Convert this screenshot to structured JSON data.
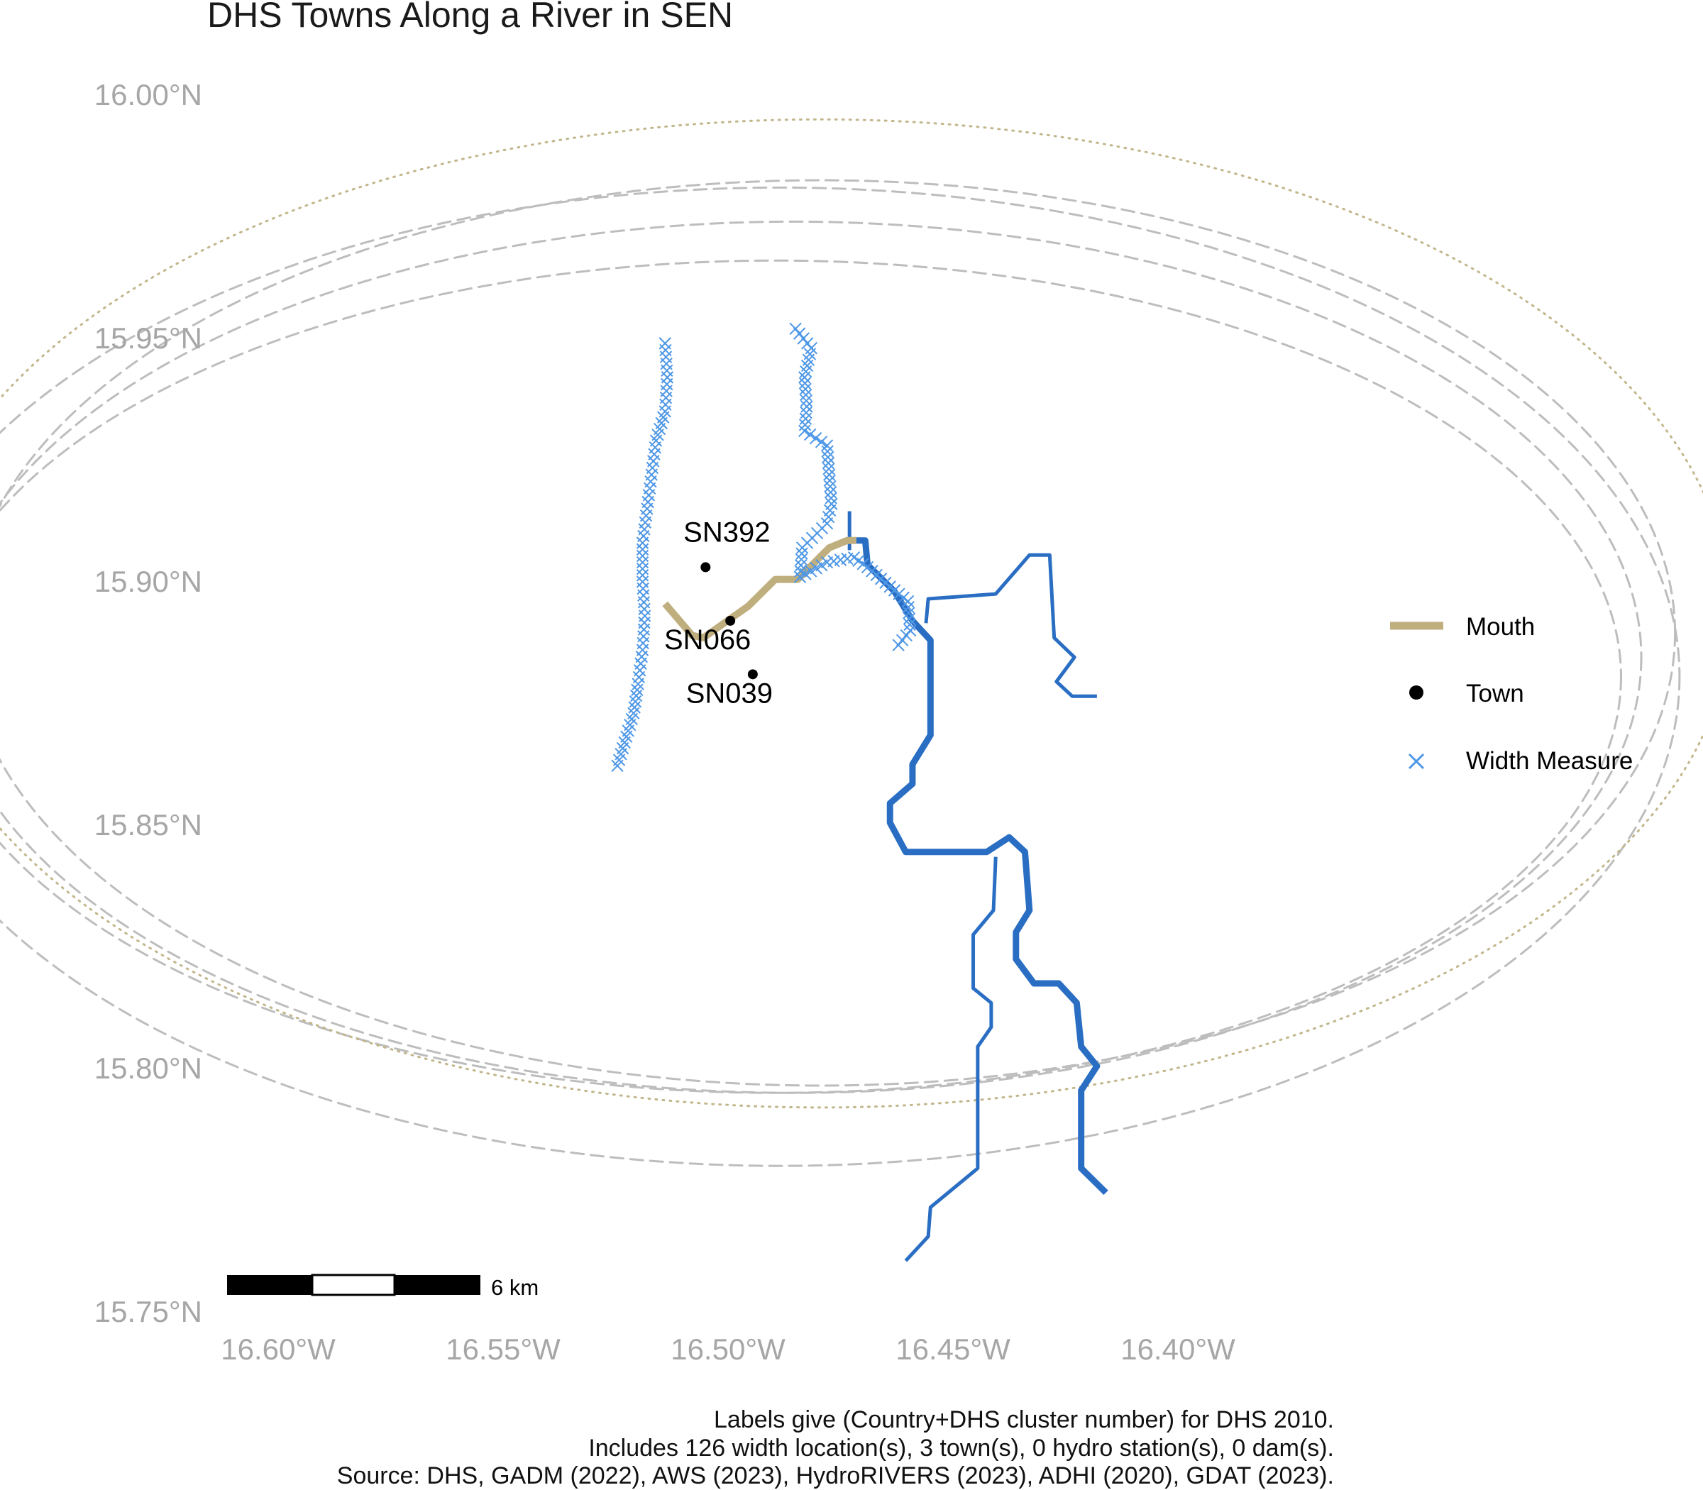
{
  "title": "DHS Towns Along a River in SEN",
  "axes": {
    "y_ticks": [
      "16.00°N",
      "15.95°N",
      "15.90°N",
      "15.85°N",
      "15.80°N",
      "15.75°N"
    ],
    "x_ticks": [
      "16.60°W",
      "16.55°W",
      "16.50°W",
      "16.45°W",
      "16.40°W"
    ],
    "lon_range": [
      -16.62,
      -16.37
    ],
    "lat_range": [
      15.75,
      16.0
    ]
  },
  "legend": {
    "mouth_label": "Mouth",
    "town_label": "Town",
    "width_label": "Width Measure"
  },
  "colors": {
    "mouth": "#bfae7e",
    "town": "#000000",
    "width_measure": "#4d97e6",
    "river": "#2a6ec4",
    "buffer_dashed": "#bdbdbd",
    "buffer_dotted": "#c2b68c",
    "tick_label": "#a6a6a6"
  },
  "scale_bar": {
    "label": "6 km"
  },
  "towns": [
    {
      "label": "SN392",
      "lon": -16.505,
      "lat": 15.903
    },
    {
      "label": "SN066",
      "lon": -16.4995,
      "lat": 15.892
    },
    {
      "label": "SN039",
      "lon": -16.4945,
      "lat": 15.881
    }
  ],
  "captions": [
    "Labels give (Country+DHS cluster number) for DHS 2010.",
    "Includes 126 width location(s), 3 town(s), 0 hydro station(s), 0 dam(s).",
    "Source: DHS, GADM (2022), AWS (2023), HydroRIVERS (2023), ADHI (2020), GDAT (2023)."
  ],
  "rivers": [
    {
      "name": "mouth-path",
      "kind": "mouth",
      "coords": [
        [
          -16.514,
          15.8955
        ],
        [
          -16.508,
          15.889
        ],
        [
          -16.5055,
          15.8885
        ],
        [
          -16.4955,
          15.895
        ],
        [
          -16.4895,
          15.9005
        ],
        [
          -16.4845,
          15.9005
        ],
        [
          -16.4775,
          15.907
        ],
        [
          -16.4735,
          15.9085
        ],
        [
          -16.4715,
          15.9085
        ]
      ]
    },
    {
      "name": "main-river",
      "kind": "river",
      "width": 9,
      "coords": [
        [
          -16.4715,
          15.9085
        ],
        [
          -16.4695,
          15.9085
        ],
        [
          -16.469,
          15.9035
        ],
        [
          -16.463,
          15.898
        ],
        [
          -16.459,
          15.892
        ],
        [
          -16.455,
          15.888
        ],
        [
          -16.455,
          15.8685
        ],
        [
          -16.459,
          15.8625
        ],
        [
          -16.459,
          15.8585
        ],
        [
          -16.464,
          15.8545
        ],
        [
          -16.464,
          15.8505
        ],
        [
          -16.4605,
          15.8445
        ],
        [
          -16.4425,
          15.8445
        ],
        [
          -16.4375,
          15.8475
        ],
        [
          -16.434,
          15.8445
        ],
        [
          -16.433,
          15.8325
        ],
        [
          -16.436,
          15.828
        ],
        [
          -16.436,
          15.8225
        ],
        [
          -16.432,
          15.8175
        ],
        [
          -16.4265,
          15.8175
        ],
        [
          -16.4225,
          15.8135
        ],
        [
          -16.4215,
          15.8045
        ],
        [
          -16.418,
          15.8005
        ],
        [
          -16.4215,
          15.7955
        ],
        [
          -16.4215,
          15.7795
        ],
        [
          -16.416,
          15.7745
        ]
      ]
    },
    {
      "name": "trib-north",
      "kind": "river",
      "width": 5,
      "coords": [
        [
          -16.473,
          15.9145
        ],
        [
          -16.473,
          15.9065
        ]
      ]
    },
    {
      "name": "trib-east",
      "kind": "river",
      "width": 5,
      "coords": [
        [
          -16.456,
          15.8915
        ],
        [
          -16.4555,
          15.8965
        ],
        [
          -16.4405,
          15.8975
        ],
        [
          -16.433,
          15.9055
        ],
        [
          -16.4285,
          15.9055
        ],
        [
          -16.4275,
          15.8885
        ],
        [
          -16.423,
          15.8845
        ],
        [
          -16.427,
          15.8795
        ],
        [
          -16.4235,
          15.8765
        ],
        [
          -16.418,
          15.8765
        ]
      ]
    },
    {
      "name": "trib-south",
      "kind": "river",
      "width": 5,
      "coords": [
        [
          -16.4405,
          15.8435
        ],
        [
          -16.441,
          15.8325
        ],
        [
          -16.4455,
          15.8275
        ],
        [
          -16.4455,
          15.8165
        ],
        [
          -16.4415,
          15.8135
        ],
        [
          -16.4415,
          15.8085
        ],
        [
          -16.4445,
          15.8045
        ],
        [
          -16.4445,
          15.7795
        ],
        [
          -16.455,
          15.7715
        ],
        [
          -16.4555,
          15.7655
        ],
        [
          -16.4605,
          15.7605
        ]
      ]
    }
  ],
  "buffers": [
    {
      "name": "buffer-dashed-1",
      "style": "dashed",
      "cx": -16.4895,
      "cy": 15.8805,
      "rx": 0.188,
      "ry": 0.0855
    },
    {
      "name": "buffer-dashed-2",
      "style": "dashed",
      "cx": -16.4855,
      "cy": 15.8845,
      "rx": 0.1885,
      "ry": 0.0895
    },
    {
      "name": "buffer-dashed-3",
      "style": "dashed",
      "cx": -16.4795,
      "cy": 15.8895,
      "rx": 0.19,
      "ry": 0.093
    },
    {
      "name": "buffer-dashed-4",
      "style": "dashed",
      "cx": -16.4885,
      "cy": 15.8805,
      "rx": 0.2,
      "ry": 0.1005
    },
    {
      "name": "buffer-dotted",
      "style": "dotted",
      "cx": -16.4795,
      "cy": 15.8935,
      "rx": 0.2025,
      "ry": 0.1015
    }
  ],
  "width_lines": [
    {
      "name": "width-west-channel",
      "coords": [
        [
          -16.514,
          15.949
        ],
        [
          -16.5135,
          15.942
        ],
        [
          -16.514,
          15.935
        ],
        [
          -16.516,
          15.929
        ],
        [
          -16.517,
          15.922
        ],
        [
          -16.518,
          15.915
        ],
        [
          -16.519,
          15.908
        ],
        [
          -16.519,
          15.9
        ],
        [
          -16.5185,
          15.893
        ],
        [
          -16.519,
          15.886
        ],
        [
          -16.52,
          15.879
        ],
        [
          -16.521,
          15.873
        ],
        [
          -16.523,
          15.867
        ],
        [
          -16.525,
          15.861
        ]
      ]
    },
    {
      "name": "width-north-channel",
      "coords": [
        [
          -16.485,
          15.952
        ],
        [
          -16.4815,
          15.948
        ],
        [
          -16.483,
          15.942
        ],
        [
          -16.4825,
          15.936
        ],
        [
          -16.483,
          15.931
        ],
        [
          -16.478,
          15.928
        ],
        [
          -16.4775,
          15.922
        ],
        [
          -16.477,
          15.916
        ],
        [
          -16.478,
          15.912
        ],
        [
          -16.4835,
          15.907
        ],
        [
          -16.484,
          15.901
        ],
        [
          -16.478,
          15.904
        ],
        [
          -16.472,
          15.905
        ],
        [
          -16.469,
          15.903
        ],
        [
          -16.464,
          15.899
        ],
        [
          -16.46,
          15.896
        ],
        [
          -16.4595,
          15.89
        ],
        [
          -16.463,
          15.886
        ]
      ]
    }
  ]
}
